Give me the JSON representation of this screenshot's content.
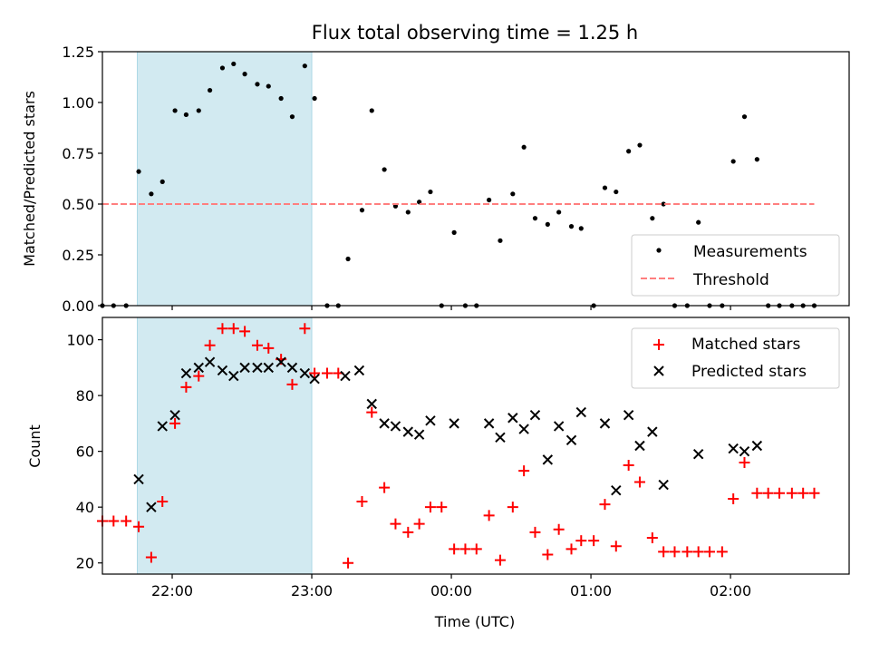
{
  "chart_data": [
    {
      "type": "scatter",
      "title": "Flux total observing time = 1.25 h",
      "xlabel": "",
      "ylabel": "Matched/Predicted stars",
      "x_units": "hours since 00:00 UTC",
      "xlim": [
        -2.5,
        2.85
      ],
      "ylim": [
        0,
        1.25
      ],
      "xticks": [
        {
          "v": -2,
          "label": "22:00"
        },
        {
          "v": -1,
          "label": "23:00"
        },
        {
          "v": 0,
          "label": "00:00"
        },
        {
          "v": 1,
          "label": "01:00"
        },
        {
          "v": 2,
          "label": "02:00"
        }
      ],
      "yticks": [
        {
          "v": 0,
          "label": "0.00"
        },
        {
          "v": 0.25,
          "label": "0.25"
        },
        {
          "v": 0.5,
          "label": "0.50"
        },
        {
          "v": 0.75,
          "label": "0.75"
        },
        {
          "v": 1.0,
          "label": "1.00"
        },
        {
          "v": 1.25,
          "label": "1.25"
        }
      ],
      "shaded_region": {
        "x": [
          -2.25,
          -1.0
        ],
        "color": "#add8e6"
      },
      "legend": {
        "position": "bottom-right",
        "entries": [
          {
            "label": "Measurements",
            "marker": "dot",
            "color": "#000000"
          },
          {
            "label": "Threshold",
            "marker": "dashed-line",
            "color": "#ff7f7f"
          }
        ]
      },
      "series": [
        {
          "name": "Measurements",
          "marker": "dot",
          "color": "#000000",
          "points": [
            [
              -2.5,
              0.0
            ],
            [
              -2.42,
              0.0
            ],
            [
              -2.33,
              0.0
            ],
            [
              -2.24,
              0.66
            ],
            [
              -2.15,
              0.55
            ],
            [
              -2.07,
              0.61
            ],
            [
              -1.98,
              0.96
            ],
            [
              -1.9,
              0.94
            ],
            [
              -1.81,
              0.96
            ],
            [
              -1.73,
              1.06
            ],
            [
              -1.64,
              1.17
            ],
            [
              -1.56,
              1.19
            ],
            [
              -1.48,
              1.14
            ],
            [
              -1.39,
              1.09
            ],
            [
              -1.31,
              1.08
            ],
            [
              -1.22,
              1.02
            ],
            [
              -1.14,
              0.93
            ],
            [
              -1.05,
              1.18
            ],
            [
              -0.98,
              1.02
            ],
            [
              -0.89,
              0.0
            ],
            [
              -0.81,
              0.0
            ],
            [
              -0.74,
              0.23
            ],
            [
              -0.64,
              0.47
            ],
            [
              -0.57,
              0.96
            ],
            [
              -0.48,
              0.67
            ],
            [
              -0.4,
              0.49
            ],
            [
              -0.31,
              0.46
            ],
            [
              -0.23,
              0.51
            ],
            [
              -0.15,
              0.56
            ],
            [
              -0.07,
              0.0
            ],
            [
              0.02,
              0.36
            ],
            [
              0.1,
              0.0
            ],
            [
              0.18,
              0.0
            ],
            [
              0.27,
              0.52
            ],
            [
              0.35,
              0.32
            ],
            [
              0.44,
              0.55
            ],
            [
              0.52,
              0.78
            ],
            [
              0.6,
              0.43
            ],
            [
              0.69,
              0.4
            ],
            [
              0.77,
              0.46
            ],
            [
              0.86,
              0.39
            ],
            [
              0.93,
              0.38
            ],
            [
              1.02,
              0.0
            ],
            [
              1.1,
              0.58
            ],
            [
              1.18,
              0.56
            ],
            [
              1.27,
              0.76
            ],
            [
              1.35,
              0.79
            ],
            [
              1.44,
              0.43
            ],
            [
              1.52,
              0.5
            ],
            [
              1.6,
              0.0
            ],
            [
              1.69,
              0.0
            ],
            [
              1.77,
              0.41
            ],
            [
              1.85,
              0.0
            ],
            [
              1.94,
              0.0
            ],
            [
              2.02,
              0.71
            ],
            [
              2.1,
              0.93
            ],
            [
              2.19,
              0.72
            ],
            [
              2.27,
              0.0
            ],
            [
              2.35,
              0.0
            ],
            [
              2.44,
              0.0
            ],
            [
              2.52,
              0.0
            ],
            [
              2.6,
              0.0
            ]
          ]
        },
        {
          "name": "Threshold",
          "marker": "dashed-line",
          "color": "#ff7f7f",
          "from_to": [
            [
              -2.5,
              0.5
            ],
            [
              2.6,
              0.5
            ]
          ]
        }
      ]
    },
    {
      "type": "scatter",
      "title": "",
      "xlabel": "Time (UTC)",
      "ylabel": "Count",
      "x_units": "hours since 00:00 UTC",
      "xlim": [
        -2.5,
        2.85
      ],
      "ylim": [
        16,
        108
      ],
      "xticks": [
        {
          "v": -2,
          "label": "22:00"
        },
        {
          "v": -1,
          "label": "23:00"
        },
        {
          "v": 0,
          "label": "00:00"
        },
        {
          "v": 1,
          "label": "01:00"
        },
        {
          "v": 2,
          "label": "02:00"
        }
      ],
      "yticks": [
        {
          "v": 20,
          "label": "20"
        },
        {
          "v": 40,
          "label": "40"
        },
        {
          "v": 60,
          "label": "60"
        },
        {
          "v": 80,
          "label": "80"
        },
        {
          "v": 100,
          "label": "100"
        }
      ],
      "shaded_region": {
        "x": [
          -2.25,
          -1.0
        ],
        "color": "#add8e6"
      },
      "legend": {
        "position": "top-right",
        "entries": [
          {
            "label": "Matched stars",
            "marker": "plus",
            "color": "#ff0000"
          },
          {
            "label": "Predicted stars",
            "marker": "x",
            "color": "#000000"
          }
        ]
      },
      "series": [
        {
          "name": "Matched stars",
          "marker": "plus",
          "color": "#ff0000",
          "points": [
            [
              -2.5,
              35
            ],
            [
              -2.42,
              35
            ],
            [
              -2.33,
              35
            ],
            [
              -2.24,
              33
            ],
            [
              -2.15,
              22
            ],
            [
              -2.07,
              42
            ],
            [
              -1.98,
              70
            ],
            [
              -1.9,
              83
            ],
            [
              -1.81,
              87
            ],
            [
              -1.73,
              98
            ],
            [
              -1.64,
              104
            ],
            [
              -1.56,
              104
            ],
            [
              -1.48,
              103
            ],
            [
              -1.39,
              98
            ],
            [
              -1.31,
              97
            ],
            [
              -1.22,
              93
            ],
            [
              -1.14,
              84
            ],
            [
              -1.05,
              104
            ],
            [
              -0.98,
              88
            ],
            [
              -0.89,
              88
            ],
            [
              -0.81,
              88
            ],
            [
              -0.74,
              20
            ],
            [
              -0.64,
              42
            ],
            [
              -0.57,
              74
            ],
            [
              -0.48,
              47
            ],
            [
              -0.4,
              34
            ],
            [
              -0.31,
              31
            ],
            [
              -0.23,
              34
            ],
            [
              -0.15,
              40
            ],
            [
              -0.07,
              40
            ],
            [
              0.02,
              25
            ],
            [
              0.1,
              25
            ],
            [
              0.18,
              25
            ],
            [
              0.27,
              37
            ],
            [
              0.35,
              21
            ],
            [
              0.44,
              40
            ],
            [
              0.52,
              53
            ],
            [
              0.6,
              31
            ],
            [
              0.69,
              23
            ],
            [
              0.77,
              32
            ],
            [
              0.86,
              25
            ],
            [
              0.93,
              28
            ],
            [
              1.02,
              28
            ],
            [
              1.1,
              41
            ],
            [
              1.18,
              26
            ],
            [
              1.27,
              55
            ],
            [
              1.35,
              49
            ],
            [
              1.44,
              29
            ],
            [
              1.52,
              24
            ],
            [
              1.6,
              24
            ],
            [
              1.69,
              24
            ],
            [
              1.77,
              24
            ],
            [
              1.85,
              24
            ],
            [
              1.94,
              24
            ],
            [
              2.02,
              43
            ],
            [
              2.1,
              56
            ],
            [
              2.19,
              45
            ],
            [
              2.27,
              45
            ],
            [
              2.35,
              45
            ],
            [
              2.44,
              45
            ],
            [
              2.52,
              45
            ],
            [
              2.6,
              45
            ]
          ]
        },
        {
          "name": "Predicted stars",
          "marker": "x",
          "color": "#000000",
          "points": [
            [
              -2.24,
              50
            ],
            [
              -2.15,
              40
            ],
            [
              -2.07,
              69
            ],
            [
              -1.98,
              73
            ],
            [
              -1.9,
              88
            ],
            [
              -1.81,
              90
            ],
            [
              -1.73,
              92
            ],
            [
              -1.64,
              89
            ],
            [
              -1.56,
              87
            ],
            [
              -1.48,
              90
            ],
            [
              -1.39,
              90
            ],
            [
              -1.31,
              90
            ],
            [
              -1.22,
              92
            ],
            [
              -1.14,
              90
            ],
            [
              -1.05,
              88
            ],
            [
              -0.98,
              86
            ],
            [
              -0.76,
              87
            ],
            [
              -0.66,
              89
            ],
            [
              -0.57,
              77
            ],
            [
              -0.48,
              70
            ],
            [
              -0.4,
              69
            ],
            [
              -0.31,
              67
            ],
            [
              -0.23,
              66
            ],
            [
              -0.15,
              71
            ],
            [
              0.02,
              70
            ],
            [
              0.27,
              70
            ],
            [
              0.35,
              65
            ],
            [
              0.44,
              72
            ],
            [
              0.52,
              68
            ],
            [
              0.6,
              73
            ],
            [
              0.69,
              57
            ],
            [
              0.77,
              69
            ],
            [
              0.86,
              64
            ],
            [
              0.93,
              74
            ],
            [
              1.1,
              70
            ],
            [
              1.18,
              46
            ],
            [
              1.27,
              73
            ],
            [
              1.35,
              62
            ],
            [
              1.44,
              67
            ],
            [
              1.52,
              48
            ],
            [
              1.77,
              59
            ],
            [
              2.02,
              61
            ],
            [
              2.1,
              60
            ],
            [
              2.19,
              62
            ]
          ]
        }
      ]
    }
  ]
}
